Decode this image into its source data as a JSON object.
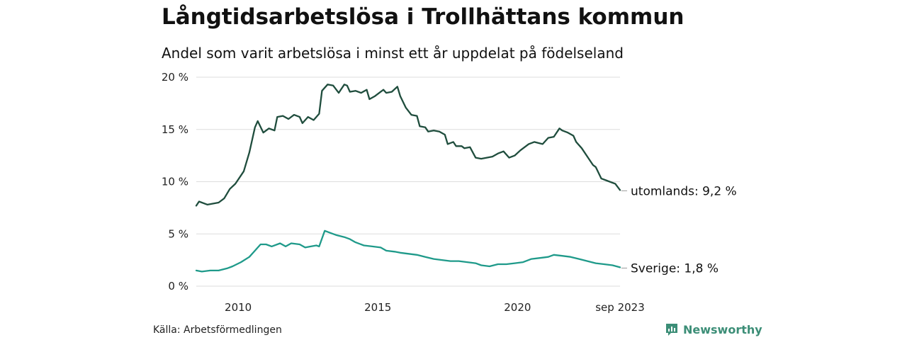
{
  "header": {
    "title": "Långtidsarbetslösa i Trollhättans kommun",
    "subtitle": "Andel som varit arbetslösa i minst ett år uppdelat på födelseland"
  },
  "footer": {
    "source": "Källa: Arbetsförmedlingen",
    "brand": "Newsworthy",
    "brand_icon": "bar-chart-icon"
  },
  "colors": {
    "utomlands": "#1f4d3d",
    "sverige": "#1f9a8a",
    "grid": "#dddddd",
    "text": "#111111",
    "brand": "#3c8e77"
  },
  "chart_data": {
    "type": "line",
    "title": "Långtidsarbetslösa i Trollhättans kommun",
    "subtitle": "Andel som varit arbetslösa i minst ett år uppdelat på födelseland",
    "xlabel": "",
    "ylabel": "",
    "xlim": [
      2008.5,
      2023.67
    ],
    "ylim": [
      0,
      20
    ],
    "y_ticks": [
      0,
      5,
      10,
      15,
      20
    ],
    "y_tick_labels": [
      "0 %",
      "5 %",
      "10 %",
      "15 %",
      "20 %"
    ],
    "x_ticks": [
      2010,
      2015,
      2020,
      2023.67
    ],
    "x_tick_labels": [
      "2010",
      "2015",
      "2020",
      "sep 2023"
    ],
    "grid": true,
    "series": [
      {
        "name": "utomlands",
        "label": "utomlands: 9,2 %",
        "last_value": 9.2,
        "points": [
          [
            2008.5,
            7.7
          ],
          [
            2008.6,
            8.1
          ],
          [
            2008.9,
            7.8
          ],
          [
            2009.3,
            8.0
          ],
          [
            2009.5,
            8.4
          ],
          [
            2009.7,
            9.3
          ],
          [
            2009.9,
            9.8
          ],
          [
            2010.2,
            11.0
          ],
          [
            2010.4,
            12.8
          ],
          [
            2010.6,
            15.2
          ],
          [
            2010.7,
            15.8
          ],
          [
            2010.9,
            14.7
          ],
          [
            2011.1,
            15.1
          ],
          [
            2011.3,
            14.9
          ],
          [
            2011.4,
            16.2
          ],
          [
            2011.6,
            16.3
          ],
          [
            2011.8,
            16.0
          ],
          [
            2012.0,
            16.4
          ],
          [
            2012.2,
            16.2
          ],
          [
            2012.3,
            15.6
          ],
          [
            2012.5,
            16.2
          ],
          [
            2012.7,
            15.9
          ],
          [
            2012.9,
            16.5
          ],
          [
            2013.0,
            18.7
          ],
          [
            2013.2,
            19.3
          ],
          [
            2013.4,
            19.2
          ],
          [
            2013.6,
            18.5
          ],
          [
            2013.8,
            19.3
          ],
          [
            2013.9,
            19.2
          ],
          [
            2014.0,
            18.6
          ],
          [
            2014.2,
            18.7
          ],
          [
            2014.4,
            18.5
          ],
          [
            2014.6,
            18.8
          ],
          [
            2014.7,
            17.9
          ],
          [
            2014.9,
            18.2
          ],
          [
            2015.1,
            18.6
          ],
          [
            2015.2,
            18.8
          ],
          [
            2015.3,
            18.5
          ],
          [
            2015.5,
            18.6
          ],
          [
            2015.7,
            19.1
          ],
          [
            2015.8,
            18.2
          ],
          [
            2016.0,
            17.1
          ],
          [
            2016.2,
            16.4
          ],
          [
            2016.4,
            16.3
          ],
          [
            2016.5,
            15.3
          ],
          [
            2016.7,
            15.2
          ],
          [
            2016.8,
            14.8
          ],
          [
            2017.0,
            14.9
          ],
          [
            2017.2,
            14.8
          ],
          [
            2017.4,
            14.5
          ],
          [
            2017.5,
            13.6
          ],
          [
            2017.7,
            13.8
          ],
          [
            2017.8,
            13.4
          ],
          [
            2018.0,
            13.4
          ],
          [
            2018.1,
            13.2
          ],
          [
            2018.3,
            13.3
          ],
          [
            2018.5,
            12.3
          ],
          [
            2018.7,
            12.2
          ],
          [
            2018.9,
            12.3
          ],
          [
            2019.1,
            12.4
          ],
          [
            2019.3,
            12.7
          ],
          [
            2019.5,
            12.9
          ],
          [
            2019.7,
            12.3
          ],
          [
            2019.9,
            12.5
          ],
          [
            2020.1,
            13.0
          ],
          [
            2020.4,
            13.6
          ],
          [
            2020.6,
            13.8
          ],
          [
            2020.9,
            13.6
          ],
          [
            2021.1,
            14.2
          ],
          [
            2021.3,
            14.3
          ],
          [
            2021.5,
            15.1
          ],
          [
            2021.6,
            14.9
          ],
          [
            2021.8,
            14.7
          ],
          [
            2022.0,
            14.4
          ],
          [
            2022.1,
            13.8
          ],
          [
            2022.3,
            13.2
          ],
          [
            2022.5,
            12.4
          ],
          [
            2022.7,
            11.6
          ],
          [
            2022.8,
            11.4
          ],
          [
            2023.0,
            10.3
          ],
          [
            2023.2,
            10.1
          ],
          [
            2023.4,
            9.9
          ],
          [
            2023.5,
            9.8
          ],
          [
            2023.67,
            9.2
          ]
        ]
      },
      {
        "name": "Sverige",
        "label": "Sverige: 1,8 %",
        "last_value": 1.8,
        "points": [
          [
            2008.5,
            1.5
          ],
          [
            2008.7,
            1.4
          ],
          [
            2009.0,
            1.5
          ],
          [
            2009.3,
            1.5
          ],
          [
            2009.6,
            1.7
          ],
          [
            2009.8,
            1.9
          ],
          [
            2010.1,
            2.3
          ],
          [
            2010.4,
            2.8
          ],
          [
            2010.6,
            3.4
          ],
          [
            2010.8,
            4.0
          ],
          [
            2011.0,
            4.0
          ],
          [
            2011.2,
            3.8
          ],
          [
            2011.5,
            4.1
          ],
          [
            2011.7,
            3.8
          ],
          [
            2011.9,
            4.1
          ],
          [
            2012.2,
            4.0
          ],
          [
            2012.4,
            3.7
          ],
          [
            2012.6,
            3.8
          ],
          [
            2012.8,
            3.9
          ],
          [
            2012.9,
            3.8
          ],
          [
            2013.1,
            5.3
          ],
          [
            2013.3,
            5.1
          ],
          [
            2013.5,
            4.9
          ],
          [
            2013.8,
            4.7
          ],
          [
            2014.0,
            4.5
          ],
          [
            2014.2,
            4.2
          ],
          [
            2014.5,
            3.9
          ],
          [
            2014.8,
            3.8
          ],
          [
            2015.1,
            3.7
          ],
          [
            2015.3,
            3.4
          ],
          [
            2015.6,
            3.3
          ],
          [
            2015.8,
            3.2
          ],
          [
            2016.1,
            3.1
          ],
          [
            2016.4,
            3.0
          ],
          [
            2016.7,
            2.8
          ],
          [
            2017.0,
            2.6
          ],
          [
            2017.3,
            2.5
          ],
          [
            2017.6,
            2.4
          ],
          [
            2017.9,
            2.4
          ],
          [
            2018.2,
            2.3
          ],
          [
            2018.5,
            2.2
          ],
          [
            2018.7,
            2.0
          ],
          [
            2019.0,
            1.9
          ],
          [
            2019.3,
            2.1
          ],
          [
            2019.6,
            2.1
          ],
          [
            2019.9,
            2.2
          ],
          [
            2020.2,
            2.3
          ],
          [
            2020.5,
            2.6
          ],
          [
            2020.8,
            2.7
          ],
          [
            2021.1,
            2.8
          ],
          [
            2021.3,
            3.0
          ],
          [
            2021.6,
            2.9
          ],
          [
            2021.9,
            2.8
          ],
          [
            2022.2,
            2.6
          ],
          [
            2022.5,
            2.4
          ],
          [
            2022.8,
            2.2
          ],
          [
            2023.1,
            2.1
          ],
          [
            2023.4,
            2.0
          ],
          [
            2023.67,
            1.8
          ]
        ]
      }
    ]
  }
}
